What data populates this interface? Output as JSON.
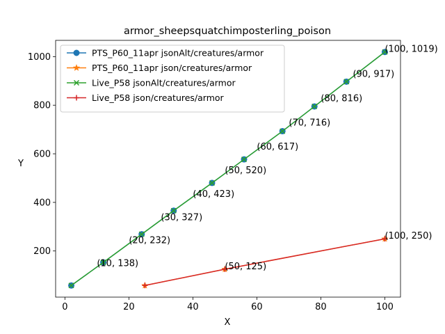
{
  "chart_data": {
    "type": "line",
    "title": "armor_sheepsquatchimposterling_poison",
    "xlabel": "X",
    "ylabel": "Y",
    "xlim": [
      -2.9,
      104.9
    ],
    "ylim": [
      10.05,
      1066.95
    ],
    "xticks": [
      0,
      20,
      40,
      60,
      80,
      100
    ],
    "yticks": [
      200,
      400,
      600,
      800,
      1000
    ],
    "grid": false,
    "legend_position": "top-left",
    "series": [
      {
        "name": "PTS_P60_11apr jsonAlt/creatures/armor",
        "color": "#1f77b4",
        "marker": "circle",
        "x": [
          2,
          12,
          24,
          34,
          46,
          56,
          68,
          78,
          88,
          100
        ],
        "y": [
          58,
          153,
          269,
          366,
          480,
          577,
          693,
          795,
          897,
          1019
        ]
      },
      {
        "name": "PTS_P60_11apr json/creatures/armor",
        "color": "#ff7f0e",
        "marker": "star",
        "x": [
          25,
          50,
          100
        ],
        "y": [
          58,
          125,
          250
        ]
      },
      {
        "name": "Live_P58 jsonAlt/creatures/armor",
        "color": "#2ca02c",
        "marker": "x",
        "x": [
          2,
          12,
          24,
          34,
          46,
          56,
          68,
          78,
          88,
          100
        ],
        "y": [
          58,
          153,
          269,
          366,
          480,
          577,
          693,
          795,
          897,
          1019
        ]
      },
      {
        "name": "Live_P58 json/creatures/armor",
        "color": "#d62728",
        "marker": "plus",
        "x": [
          25,
          50,
          100
        ],
        "y": [
          58,
          125,
          250
        ]
      }
    ],
    "annotations": [
      {
        "x": 10,
        "y": 138,
        "text": "(10, 138)"
      },
      {
        "x": 20,
        "y": 232,
        "text": "(20, 232)"
      },
      {
        "x": 30,
        "y": 327,
        "text": "(30, 327)"
      },
      {
        "x": 40,
        "y": 423,
        "text": "(40, 423)"
      },
      {
        "x": 50,
        "y": 520,
        "text": "(50, 520)"
      },
      {
        "x": 60,
        "y": 617,
        "text": "(60, 617)"
      },
      {
        "x": 70,
        "y": 716,
        "text": "(70, 716)"
      },
      {
        "x": 80,
        "y": 816,
        "text": "(80, 816)"
      },
      {
        "x": 90,
        "y": 917,
        "text": "(90, 917)"
      },
      {
        "x": 100,
        "y": 1019,
        "text": "(100, 1019)"
      },
      {
        "x": 50,
        "y": 125,
        "text": "(50, 125)"
      },
      {
        "x": 100,
        "y": 250,
        "text": "(100, 250)"
      }
    ]
  }
}
